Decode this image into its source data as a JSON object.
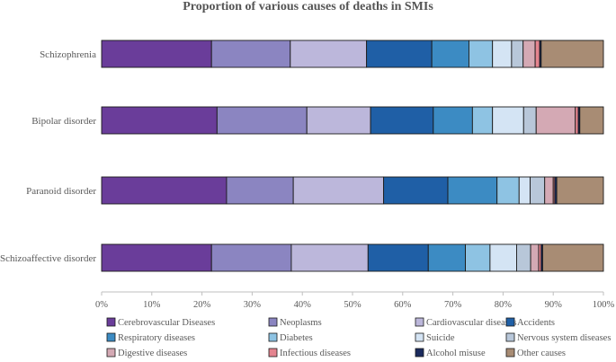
{
  "chart_data": {
    "type": "bar",
    "orientation": "horizontal",
    "stacked": true,
    "title": "Proportion of various causes of deaths in SMIs",
    "xlabel": "",
    "ylabel": "",
    "xlim": [
      0,
      100
    ],
    "x_ticks": [
      "0%",
      "10%",
      "20%",
      "30%",
      "40%",
      "50%",
      "60%",
      "70%",
      "80%",
      "90%",
      "100%"
    ],
    "grid": false,
    "legend_position": "bottom",
    "categories": [
      "Schizophrenia",
      "Bipolar disorder",
      "Paranoid disorder",
      "Schizoaffective disorder"
    ],
    "series": [
      {
        "name": "Cerebrovascular Diseases",
        "color": "#6a3d9a",
        "values": [
          21.9,
          23.0,
          24.9,
          21.9
        ]
      },
      {
        "name": "Neoplasms",
        "color": "#8b85c1",
        "values": [
          15.7,
          17.9,
          13.3,
          15.9
        ]
      },
      {
        "name": "Cardiovascular diseases",
        "color": "#bcb7db",
        "values": [
          15.2,
          12.7,
          18.0,
          15.3
        ]
      },
      {
        "name": "Accidents",
        "color": "#1f5fa6",
        "values": [
          13.0,
          12.5,
          12.8,
          12.0
        ]
      },
      {
        "name": "Respiratory diseases",
        "color": "#3c8bc3",
        "values": [
          7.4,
          7.8,
          9.8,
          7.4
        ]
      },
      {
        "name": "Diabetes",
        "color": "#8ec3e3",
        "values": [
          4.7,
          4.0,
          4.4,
          4.9
        ]
      },
      {
        "name": "Suicide",
        "color": "#d4e4f4",
        "values": [
          3.8,
          6.2,
          2.2,
          5.3
        ]
      },
      {
        "name": "Nervous system diseases",
        "color": "#b8c7d9",
        "values": [
          2.3,
          2.5,
          2.9,
          2.8
        ]
      },
      {
        "name": "Digestive diseases",
        "color": "#d4a9b4",
        "values": [
          2.4,
          7.8,
          1.7,
          1.6
        ]
      },
      {
        "name": "Infectious diseases",
        "color": "#e4848f",
        "values": [
          0.9,
          0.6,
          0.3,
          0.5
        ]
      },
      {
        "name": "Alcohol misuse",
        "color": "#1b2b5e",
        "values": [
          0.3,
          0.3,
          0.4,
          0.3
        ]
      },
      {
        "name": "Other causes",
        "color": "#a88c74",
        "values": [
          12.4,
          4.7,
          9.3,
          12.1
        ]
      }
    ]
  }
}
